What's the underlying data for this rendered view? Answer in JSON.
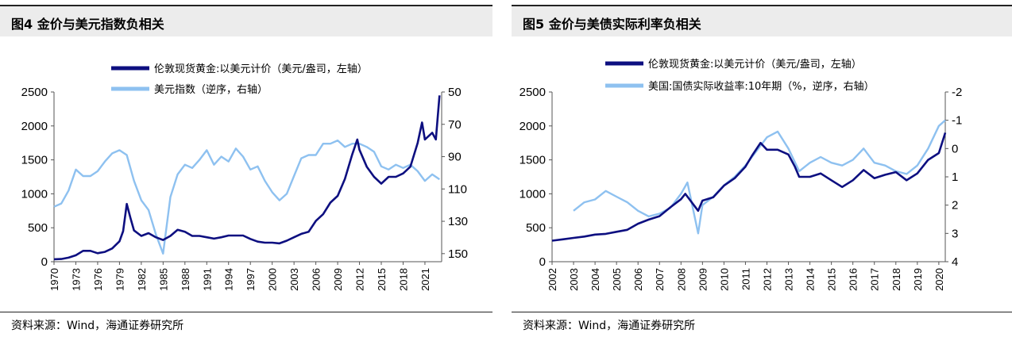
{
  "left_panel": {
    "title": "图4  金价与美元指数负相关",
    "source": "资料来源：Wind，海通证券研究所"
  },
  "right_panel": {
    "title": "图5  金价与美债实际利率负相关",
    "source": "资料来源：Wind，海通证券研究所"
  },
  "colors": {
    "gold": "#0d0f80",
    "secondary": "#8ec1f0",
    "header_bg": "#ececec"
  },
  "chart_data": [
    {
      "type": "line",
      "title": "",
      "legend_position": "top",
      "grid": false,
      "x_ticks": [
        "1970",
        "1973",
        "1976",
        "1979",
        "1982",
        "1985",
        "1988",
        "1991",
        "1994",
        "1997",
        "2000",
        "2003",
        "2006",
        "2009",
        "2012",
        "2015",
        "2018",
        "2021"
      ],
      "xlim": [
        1970,
        2023.3
      ],
      "y_left": {
        "ticks": [
          "2500",
          "2000",
          "1500",
          "1000",
          "500",
          "0"
        ],
        "lim": [
          0,
          2500
        ]
      },
      "y_right": {
        "ticks": [
          "50",
          "70",
          "90",
          "110",
          "130",
          "150"
        ],
        "lim": [
          155,
          50
        ],
        "inverted": true
      },
      "series": [
        {
          "name": "伦敦现货黄金:以美元计价（美元/盎司，左轴）",
          "axis": "left",
          "color": "#0d0f80",
          "x": [
            1970,
            1971,
            1972,
            1973,
            1974,
            1975,
            1976,
            1977,
            1978,
            1979.0,
            1979.5,
            1980.0,
            1980.5,
            1981,
            1982,
            1983,
            1984,
            1985,
            1986,
            1987,
            1988,
            1989,
            1990,
            1991,
            1992,
            1993,
            1994,
            1995,
            1996,
            1997,
            1998,
            1999,
            2000,
            2001,
            2002,
            2003,
            2004,
            2005,
            2006,
            2007,
            2008,
            2009,
            2010,
            2011,
            2011.7,
            2012,
            2013,
            2014,
            2015,
            2016,
            2017,
            2018,
            2019,
            2020,
            2020.6,
            2021,
            2022,
            2022.5,
            2023
          ],
          "y": [
            36,
            40,
            60,
            95,
            160,
            160,
            125,
            145,
            195,
            300,
            450,
            850,
            650,
            460,
            380,
            420,
            360,
            320,
            380,
            470,
            440,
            380,
            380,
            360,
            340,
            360,
            385,
            385,
            385,
            335,
            295,
            280,
            280,
            270,
            310,
            360,
            410,
            440,
            600,
            700,
            870,
            970,
            1220,
            1580,
            1800,
            1650,
            1400,
            1250,
            1150,
            1250,
            1250,
            1300,
            1400,
            1750,
            2050,
            1800,
            1900,
            1800,
            2450
          ]
        },
        {
          "name": "美元指数（逆序，右轴）",
          "axis": "right",
          "color": "#8ec1f0",
          "x": [
            1970,
            1971,
            1972,
            1973,
            1974,
            1975,
            1976,
            1977,
            1978,
            1979,
            1980,
            1981,
            1982,
            1983,
            1984,
            1985,
            1986,
            1987,
            1988,
            1989,
            1990,
            1991,
            1992,
            1993,
            1994,
            1995,
            1996,
            1997,
            1998,
            1999,
            2000,
            2001,
            2002,
            2003,
            2004,
            2005,
            2006,
            2007,
            2008,
            2009,
            2010,
            2011,
            2012,
            2013,
            2014,
            2015,
            2016,
            2017,
            2018,
            2019,
            2020,
            2021,
            2022,
            2023
          ],
          "y": [
            121,
            119,
            111,
            98,
            102,
            102,
            99,
            93,
            88,
            86,
            89,
            105,
            117,
            123,
            138,
            150,
            115,
            101,
            95,
            97,
            92,
            86,
            95,
            90,
            93,
            85,
            90,
            98,
            96,
            105,
            112,
            117,
            113,
            102,
            91,
            89,
            89,
            82,
            82,
            80,
            84,
            82,
            82,
            84,
            87,
            96,
            98,
            95,
            97,
            95,
            99,
            105,
            101,
            104
          ]
        }
      ]
    },
    {
      "type": "line",
      "title": "",
      "legend_position": "top",
      "grid": false,
      "x_ticks": [
        "2002",
        "2003",
        "2004",
        "2005",
        "2006",
        "2007",
        "2008",
        "2009",
        "2010",
        "2011",
        "2012",
        "2013",
        "2014",
        "2015",
        "2016",
        "2017",
        "2018",
        "2019",
        "2020"
      ],
      "xlim": [
        2002,
        2020.3
      ],
      "y_left": {
        "ticks": [
          "2500",
          "2000",
          "1500",
          "1000",
          "500",
          "0"
        ],
        "lim": [
          0,
          2500
        ]
      },
      "y_right": {
        "ticks": [
          "-2",
          "-1",
          "0",
          "1",
          "2",
          "3",
          "4"
        ],
        "lim": [
          4,
          -2
        ],
        "inverted": true
      },
      "series": [
        {
          "name": "伦敦现货黄金:以美元计价（美元/盎司，左轴）",
          "axis": "left",
          "color": "#0d0f80",
          "x": [
            2002,
            2002.5,
            2003,
            2003.5,
            2004,
            2004.5,
            2005,
            2005.5,
            2006,
            2006.5,
            2007,
            2007.5,
            2008,
            2008.2,
            2008.8,
            2009,
            2009.5,
            2010,
            2010.5,
            2011,
            2011.3,
            2011.7,
            2012,
            2012.5,
            2013,
            2013.3,
            2013.5,
            2014,
            2014.5,
            2015,
            2015.5,
            2016,
            2016.5,
            2017,
            2017.5,
            2018,
            2018.5,
            2019,
            2019.5,
            2020,
            2020.3
          ],
          "y": [
            310,
            330,
            350,
            370,
            400,
            410,
            440,
            470,
            560,
            620,
            670,
            800,
            920,
            1000,
            750,
            900,
            950,
            1120,
            1230,
            1400,
            1560,
            1750,
            1650,
            1650,
            1580,
            1400,
            1250,
            1250,
            1300,
            1200,
            1100,
            1200,
            1350,
            1230,
            1280,
            1320,
            1200,
            1300,
            1500,
            1600,
            1900
          ]
        },
        {
          "name": "美国:国债实际收益率:10年期（%，逆序，右轴）",
          "axis": "right",
          "color": "#8ec1f0",
          "x": [
            2003,
            2003.5,
            2004,
            2004.5,
            2005,
            2005.5,
            2006,
            2006.5,
            2007,
            2007.5,
            2008,
            2008.3,
            2008.8,
            2009,
            2009.5,
            2010,
            2010.5,
            2011,
            2011.5,
            2012,
            2012.5,
            2013,
            2013.5,
            2014,
            2014.5,
            2015,
            2015.5,
            2016,
            2016.5,
            2017,
            2017.5,
            2018,
            2018.5,
            2019,
            2019.5,
            2020,
            2020.3
          ],
          "y": [
            2.2,
            1.9,
            1.8,
            1.5,
            1.7,
            1.9,
            2.2,
            2.4,
            2.3,
            2.1,
            1.6,
            1.2,
            3.0,
            2.0,
            1.7,
            1.3,
            1.0,
            0.6,
            0.1,
            -0.4,
            -0.6,
            0.0,
            0.8,
            0.5,
            0.3,
            0.5,
            0.6,
            0.4,
            0.0,
            0.5,
            0.6,
            0.8,
            0.9,
            0.6,
            0.0,
            -0.8,
            -1.0
          ]
        }
      ]
    }
  ]
}
